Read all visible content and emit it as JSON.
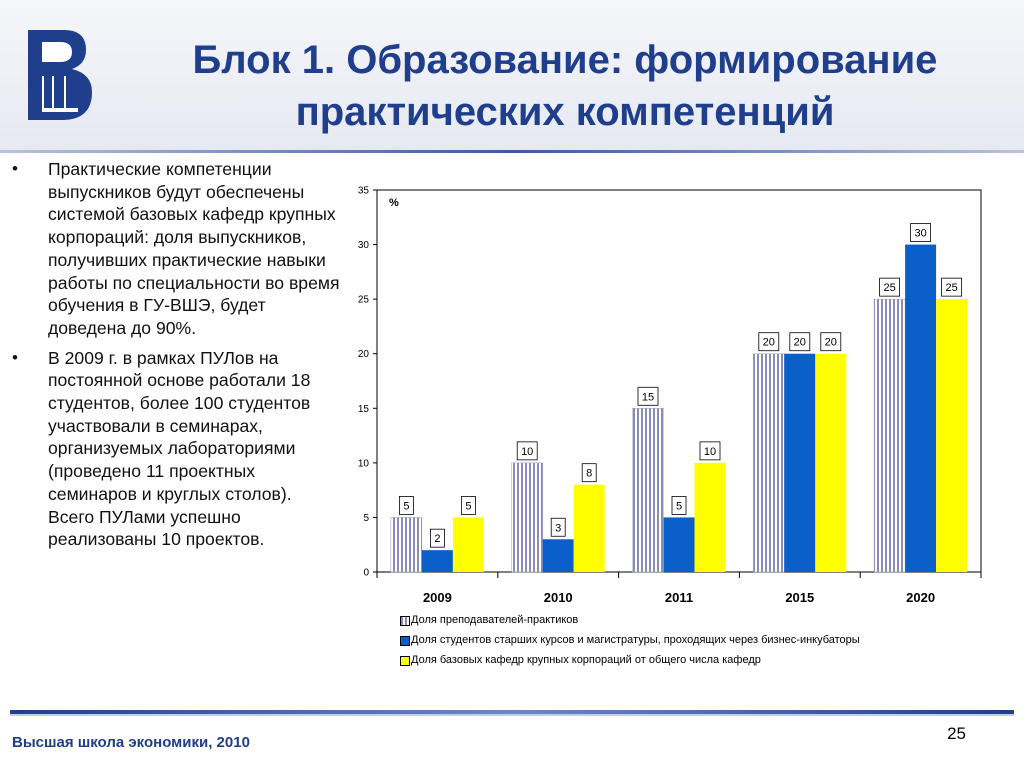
{
  "slide": {
    "title": "Блок 1. Образование: формирование практических компетенций",
    "footer": "Высшая школа экономики, 2010",
    "page_number": "25",
    "logo_text": "ВШ",
    "bullets": [
      {
        "marker": "•",
        "text": "Практические компетенции выпускников будут обеспечены системой базовых кафедр крупных корпораций: доля выпускников, получивших практические навыки работы по специальности во время обучения в ГУ-ВШЭ, будет доведена до 90%."
      },
      {
        "marker": "•",
        "text": "В 2009 г. в рамках ПУЛов на постоянной основе работали 18 студентов, более 100 студентов участвовали в семинарах, организуемых лабораториями (проведено 11 проектных семинаров и круглых столов). Всего ПУЛами успешно реализованы 10 проектов."
      }
    ],
    "colors": {
      "title": "#1f3e8c",
      "series_hatched_bg": "#ffffff",
      "series_hatched_stripe": "#8c8cb8",
      "series_blue": "#0b5fc9",
      "series_yellow": "#ffff00"
    }
  },
  "chart_data": {
    "type": "bar",
    "unit_label": "%",
    "categories": [
      "2009",
      "2010",
      "2011",
      "2015",
      "2020"
    ],
    "ylim": [
      0,
      35
    ],
    "yticks": [
      0,
      5,
      10,
      15,
      20,
      25,
      30,
      35
    ],
    "grid": false,
    "legend_position": "bottom",
    "series": [
      {
        "name": "Доля преподавателей-практиков",
        "values": [
          5,
          10,
          15,
          20,
          25
        ],
        "color": "#ffffff",
        "pattern": "vertical-stripes"
      },
      {
        "name": "Доля студентов старших курсов и магистратуры, проходящих через бизнес-инкубаторы",
        "values": [
          2,
          3,
          5,
          20,
          30
        ],
        "color": "#0b5fc9"
      },
      {
        "name": "Доля базовых кафедр крупных корпораций от общего числа кафедр",
        "values": [
          5,
          8,
          10,
          20,
          25
        ],
        "color": "#ffff00"
      }
    ]
  }
}
